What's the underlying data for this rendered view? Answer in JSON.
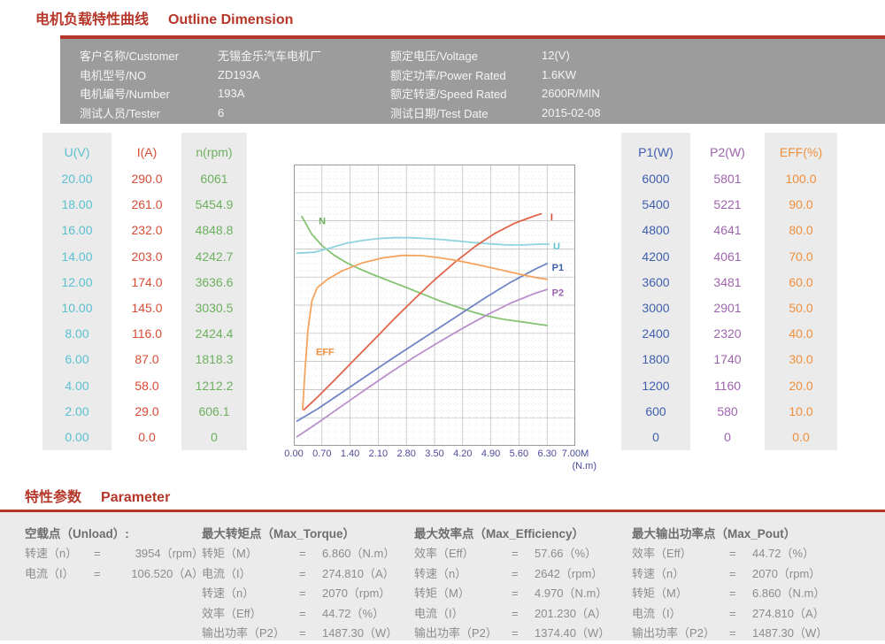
{
  "titles": {
    "section1_zh": "电机负载特性曲线",
    "section1_en": "Outline Dimension",
    "section2_zh": "特性参数",
    "section2_en": "Parameter"
  },
  "colors": {
    "accent_red": "#b5372a",
    "header_band_gray": "#9c9c9c",
    "column_bg_gray": "#ebebeb",
    "axis_tick_color": "#4a4a9c",
    "param_text_gray": "#8c8c8c"
  },
  "header": {
    "rows": [
      {
        "label": "客户名称/Customer",
        "value": "无锡金乐汽车电机厂",
        "label2": "额定电压/Voltage",
        "value2": "12(V)"
      },
      {
        "label": "电机型号/NO",
        "value": "ZD193A",
        "label2": "额定功率/Power Rated",
        "value2": "1.6KW"
      },
      {
        "label": "电机编号/Number",
        "value": "193A",
        "label2": "额定转速/Speed Rated",
        "value2": "2600R/MIN"
      },
      {
        "label": "测试人员/Tester",
        "value": "6",
        "label2": "测试日期/Test Date",
        "value2": "2015-02-08"
      }
    ]
  },
  "tables": {
    "left": [
      {
        "header": "U(V)",
        "color": "#5bc0d0",
        "bg": "#ebebeb",
        "values": [
          "20.00",
          "18.00",
          "16.00",
          "14.00",
          "12.00",
          "10.00",
          "8.00",
          "6.00",
          "4.00",
          "2.00",
          "0.00"
        ]
      },
      {
        "header": "I(A)",
        "color": "#d84b35",
        "bg": "#ffffff",
        "values": [
          "290.0",
          "261.0",
          "232.0",
          "203.0",
          "174.0",
          "145.0",
          "116.0",
          "87.0",
          "58.0",
          "29.0",
          "0.0"
        ]
      },
      {
        "header": "n(rpm)",
        "color": "#6cb05e",
        "bg": "#ebebeb",
        "values": [
          "6061",
          "5454.9",
          "4848.8",
          "4242.7",
          "3636.6",
          "3030.5",
          "2424.4",
          "1818.3",
          "1212.2",
          "606.1",
          "0"
        ]
      }
    ],
    "right": [
      {
        "header": "P1(W)",
        "color": "#3f5fae",
        "bg": "#ebebeb",
        "values": [
          "6000",
          "5400",
          "4800",
          "4200",
          "3600",
          "3000",
          "2400",
          "1800",
          "1200",
          "600",
          "0"
        ]
      },
      {
        "header": "P2(W)",
        "color": "#9f63ad",
        "bg": "#ffffff",
        "values": [
          "5801",
          "5221",
          "4641",
          "4061",
          "3481",
          "2901",
          "2320",
          "1740",
          "1160",
          "580",
          "0"
        ]
      },
      {
        "header": "EFF(%)",
        "color": "#ef8f3c",
        "bg": "#ebebeb",
        "values": [
          "100.0",
          "90.0",
          "80.0",
          "70.0",
          "60.0",
          "50.0",
          "40.0",
          "30.0",
          "20.0",
          "10.0",
          "0.0"
        ]
      }
    ]
  },
  "chart_data": {
    "type": "line",
    "title": "Motor load characteristic curves vs torque M",
    "x_axis": {
      "ticks": [
        "0.00",
        "0.70",
        "1.40",
        "2.10",
        "2.80",
        "3.50",
        "4.20",
        "4.90",
        "5.60",
        "6.30",
        "7.00M"
      ],
      "unit": "(N.m)",
      "min": 0,
      "max": 7
    },
    "y_axes": [
      {
        "name": "U",
        "unit": "V",
        "min": 0,
        "max": 20
      },
      {
        "name": "I",
        "unit": "A",
        "min": 0,
        "max": 290
      },
      {
        "name": "n",
        "unit": "rpm",
        "min": 0,
        "max": 6061
      },
      {
        "name": "P1",
        "unit": "W",
        "min": 0,
        "max": 6000
      },
      {
        "name": "P2",
        "unit": "W",
        "min": 0,
        "max": 5801
      },
      {
        "name": "EFF",
        "unit": "%",
        "min": 0,
        "max": 100
      }
    ],
    "grid": {
      "major_divisions": 10,
      "minor_per_major": 4,
      "grid_on": true
    },
    "curves": [
      {
        "name": "N",
        "color": "#85c372",
        "label_color": "#6cb05e",
        "label": {
          "x": 0.62,
          "y": 0.8
        },
        "points": [
          [
            0.2,
            0.815
          ],
          [
            0.45,
            0.752
          ],
          [
            0.7,
            0.712
          ],
          [
            1.0,
            0.678
          ],
          [
            1.3,
            0.652
          ],
          [
            1.6,
            0.631
          ],
          [
            2.0,
            0.607
          ],
          [
            2.4,
            0.585
          ],
          [
            2.8,
            0.563
          ],
          [
            3.2,
            0.54
          ],
          [
            3.6,
            0.517
          ],
          [
            4.0,
            0.497
          ],
          [
            4.4,
            0.478
          ],
          [
            4.8,
            0.462
          ],
          [
            5.2,
            0.45
          ],
          [
            5.6,
            0.442
          ],
          [
            6.0,
            0.434
          ],
          [
            6.3,
            0.428
          ]
        ]
      },
      {
        "name": "U",
        "color": "#8fd3df",
        "label_color": "#5bc0d0",
        "label": {
          "x": 6.45,
          "y": 0.71
        },
        "points": [
          [
            0.08,
            0.685
          ],
          [
            0.5,
            0.688
          ],
          [
            0.9,
            0.703
          ],
          [
            1.3,
            0.72
          ],
          [
            1.7,
            0.73
          ],
          [
            2.1,
            0.737
          ],
          [
            2.5,
            0.74
          ],
          [
            2.9,
            0.74
          ],
          [
            3.3,
            0.737
          ],
          [
            3.7,
            0.733
          ],
          [
            4.1,
            0.728
          ],
          [
            4.5,
            0.722
          ],
          [
            4.9,
            0.718
          ],
          [
            5.3,
            0.714
          ],
          [
            5.7,
            0.714
          ],
          [
            6.1,
            0.717
          ],
          [
            6.35,
            0.717
          ]
        ]
      },
      {
        "name": "I",
        "color": "#e1654b",
        "label_color": "#d84b35",
        "label": {
          "x": 6.38,
          "y": 0.815
        },
        "points": [
          [
            0.25,
            0.128
          ],
          [
            0.6,
            0.175
          ],
          [
            1.0,
            0.232
          ],
          [
            1.5,
            0.305
          ],
          [
            2.0,
            0.378
          ],
          [
            2.5,
            0.452
          ],
          [
            3.0,
            0.522
          ],
          [
            3.5,
            0.59
          ],
          [
            4.0,
            0.652
          ],
          [
            4.5,
            0.708
          ],
          [
            5.0,
            0.755
          ],
          [
            5.5,
            0.792
          ],
          [
            6.0,
            0.818
          ],
          [
            6.15,
            0.825
          ]
        ]
      },
      {
        "name": "P1",
        "color": "#6e86c4",
        "label_color": "#3f5fae",
        "label": {
          "x": 6.42,
          "y": 0.635
        },
        "points": [
          [
            0.08,
            0.088
          ],
          [
            0.6,
            0.132
          ],
          [
            1.2,
            0.19
          ],
          [
            1.8,
            0.248
          ],
          [
            2.4,
            0.306
          ],
          [
            3.0,
            0.362
          ],
          [
            3.6,
            0.418
          ],
          [
            4.2,
            0.474
          ],
          [
            4.8,
            0.53
          ],
          [
            5.4,
            0.582
          ],
          [
            6.0,
            0.628
          ],
          [
            6.3,
            0.648
          ]
        ]
      },
      {
        "name": "P2",
        "color": "#bb8fcb",
        "label_color": "#9f63ad",
        "label": {
          "x": 6.42,
          "y": 0.545
        },
        "points": [
          [
            0.08,
            0.032
          ],
          [
            0.6,
            0.082
          ],
          [
            1.2,
            0.142
          ],
          [
            1.8,
            0.202
          ],
          [
            2.4,
            0.26
          ],
          [
            3.0,
            0.316
          ],
          [
            3.6,
            0.368
          ],
          [
            4.2,
            0.418
          ],
          [
            4.8,
            0.465
          ],
          [
            5.4,
            0.508
          ],
          [
            6.0,
            0.542
          ],
          [
            6.3,
            0.556
          ]
        ]
      },
      {
        "name": "EFF",
        "color": "#f4a45e",
        "label_color": "#ef8f3c",
        "label": {
          "x": 0.55,
          "y": 0.335
        },
        "points": [
          [
            0.22,
            0.13
          ],
          [
            0.28,
            0.27
          ],
          [
            0.35,
            0.41
          ],
          [
            0.45,
            0.515
          ],
          [
            0.58,
            0.562
          ],
          [
            0.84,
            0.592
          ],
          [
            1.2,
            0.622
          ],
          [
            1.7,
            0.65
          ],
          [
            2.2,
            0.668
          ],
          [
            2.7,
            0.677
          ],
          [
            3.2,
            0.676
          ],
          [
            3.7,
            0.667
          ],
          [
            4.2,
            0.655
          ],
          [
            4.7,
            0.64
          ],
          [
            5.2,
            0.624
          ],
          [
            5.7,
            0.608
          ],
          [
            6.1,
            0.596
          ],
          [
            6.3,
            0.592
          ]
        ]
      }
    ],
    "legend_position": "labels-on-curves"
  },
  "parameters": {
    "groups": [
      {
        "title": "空载点（Unload）:",
        "rows": [
          {
            "label": "转速（n）",
            "eq": "=",
            "value": "3954（rpm）"
          },
          {
            "label": "电流（I）",
            "eq": "=",
            "value": "106.520（A）"
          }
        ]
      },
      {
        "title": "最大转矩点（Max_Torque）",
        "rows": [
          {
            "label": "转矩（M）",
            "eq": "=",
            "value": "6.860（N.m）"
          },
          {
            "label": "电流（I）",
            "eq": "=",
            "value": "274.810（A）"
          },
          {
            "label": "转速（n）",
            "eq": "=",
            "value": "2070（rpm）"
          },
          {
            "label": "效率（Eff）",
            "eq": "=",
            "value": "44.72（%）"
          },
          {
            "label": "输出功率（P2）",
            "eq": "=",
            "value": "1487.30（W）"
          }
        ]
      },
      {
        "title": "最大效率点（Max_Efficiency）",
        "rows": [
          {
            "label": "效率（Eff）",
            "eq": "=",
            "value": "57.66（%）"
          },
          {
            "label": "转速（n）",
            "eq": "=",
            "value": "2642（rpm）"
          },
          {
            "label": "转矩（M）",
            "eq": "=",
            "value": "4.970（N.m）"
          },
          {
            "label": "电流（I）",
            "eq": "=",
            "value": "201.230（A）"
          },
          {
            "label": "输出功率（P2）",
            "eq": "=",
            "value": "1374.40（W）"
          }
        ]
      },
      {
        "title": "最大输出功率点（Max_Pout）",
        "rows": [
          {
            "label": "效率（Eff）",
            "eq": "=",
            "value": "44.72（%）"
          },
          {
            "label": "转速（n）",
            "eq": "=",
            "value": "2070（rpm）"
          },
          {
            "label": "转矩（M）",
            "eq": "=",
            "value": "6.860（N.m）"
          },
          {
            "label": "电流（I）",
            "eq": "=",
            "value": "274.810（A）"
          },
          {
            "label": "输出功率（P2）",
            "eq": "=",
            "value": "1487.30（W）"
          }
        ]
      }
    ]
  }
}
